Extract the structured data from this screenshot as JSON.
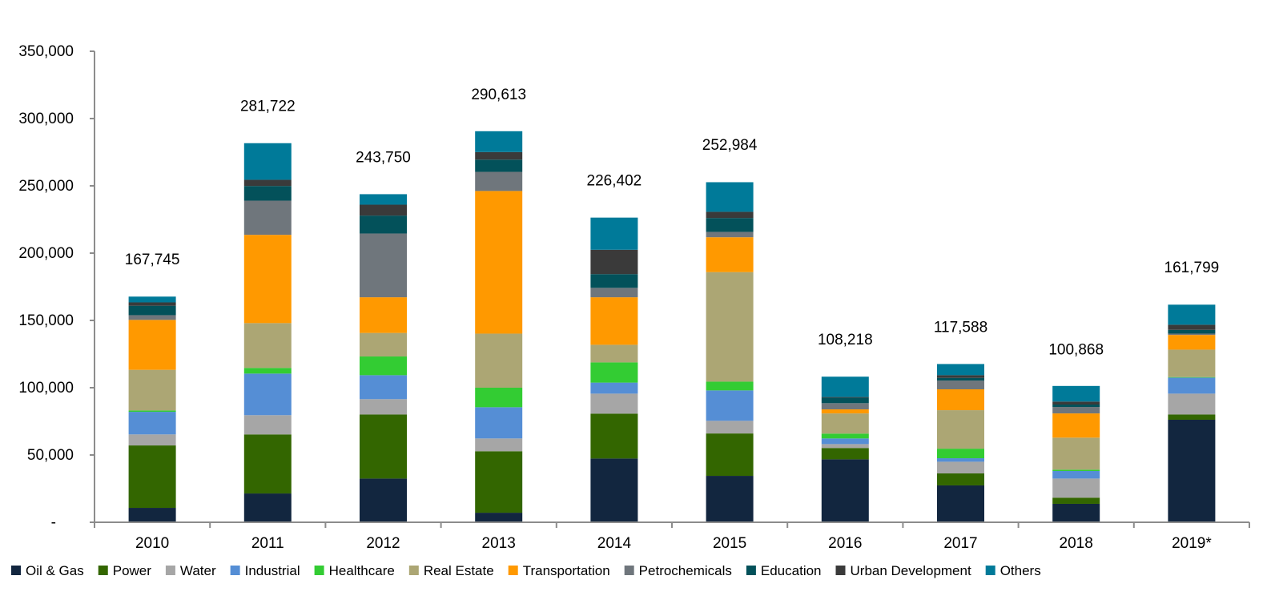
{
  "chart_data": {
    "type": "bar",
    "stacked": true,
    "title": "",
    "xlabel": "",
    "ylabel": "",
    "ylim": [
      0,
      350000
    ],
    "yticks": [
      0,
      50000,
      100000,
      150000,
      200000,
      250000,
      300000,
      350000
    ],
    "ytick_labels": [
      "-",
      "50,000",
      "100,000",
      "150,000",
      "200,000",
      "250,000",
      "300,000",
      "350,000"
    ],
    "grid": false,
    "legend_position": "bottom",
    "categories": [
      "2010",
      "2011",
      "2012",
      "2013",
      "2014",
      "2015",
      "2016",
      "2017",
      "2018",
      "2019*"
    ],
    "totals": [
      167745,
      281722,
      243750,
      290613,
      226402,
      252984,
      108218,
      117588,
      100868,
      161799
    ],
    "total_labels": [
      "167,745",
      "281,722",
      "243,750",
      "290,613",
      "226,402",
      "252,984",
      "108,218",
      "117,588",
      "100,868",
      "161,799"
    ],
    "series": [
      {
        "name": "Oil & Gas",
        "color": "#12263f",
        "values": [
          10700,
          21400,
          32500,
          7100,
          47400,
          34500,
          46800,
          27400,
          13700,
          76200
        ]
      },
      {
        "name": "Power",
        "color": "#336600",
        "values": [
          46400,
          43900,
          47600,
          45700,
          33300,
          31500,
          8400,
          8900,
          4600,
          3900
        ]
      },
      {
        "name": "Water",
        "color": "#a6a6a6",
        "values": [
          8200,
          14300,
          11400,
          9500,
          14900,
          9400,
          2900,
          8700,
          14200,
          15500
        ]
      },
      {
        "name": "Industrial",
        "color": "#558ed5",
        "values": [
          16800,
          30900,
          17800,
          23200,
          8200,
          22600,
          4200,
          2600,
          5600,
          11900
        ]
      },
      {
        "name": "Healthcare",
        "color": "#33cc33",
        "values": [
          1000,
          4200,
          13900,
          14500,
          15000,
          6500,
          3600,
          7100,
          1000,
          400
        ]
      },
      {
        "name": "Real Estate",
        "color": "#aca674",
        "values": [
          30200,
          33300,
          17500,
          40200,
          13100,
          81400,
          15000,
          28600,
          23800,
          20400
        ]
      },
      {
        "name": "Transportation",
        "color": "#ff9900",
        "values": [
          37100,
          65600,
          26500,
          106000,
          35300,
          25900,
          3000,
          15500,
          18000,
          10900
        ]
      },
      {
        "name": "Petrochemicals",
        "color": "#6f767c",
        "values": [
          3500,
          25400,
          47400,
          14200,
          7000,
          4000,
          4600,
          6500,
          4800,
          1000
        ]
      },
      {
        "name": "Education",
        "color": "#03515a",
        "values": [
          7000,
          10900,
          13300,
          9100,
          10200,
          10300,
          4100,
          2000,
          1800,
          2800
        ]
      },
      {
        "name": "Urban Development",
        "color": "#3a3a3a",
        "values": [
          2500,
          4600,
          8100,
          5600,
          18100,
          4600,
          500,
          2000,
          2200,
          3800
        ]
      },
      {
        "name": "Others",
        "color": "#007a99",
        "values": [
          4300,
          27200,
          7800,
          15500,
          23900,
          22000,
          15100,
          8300,
          11600,
          14900
        ]
      }
    ]
  }
}
